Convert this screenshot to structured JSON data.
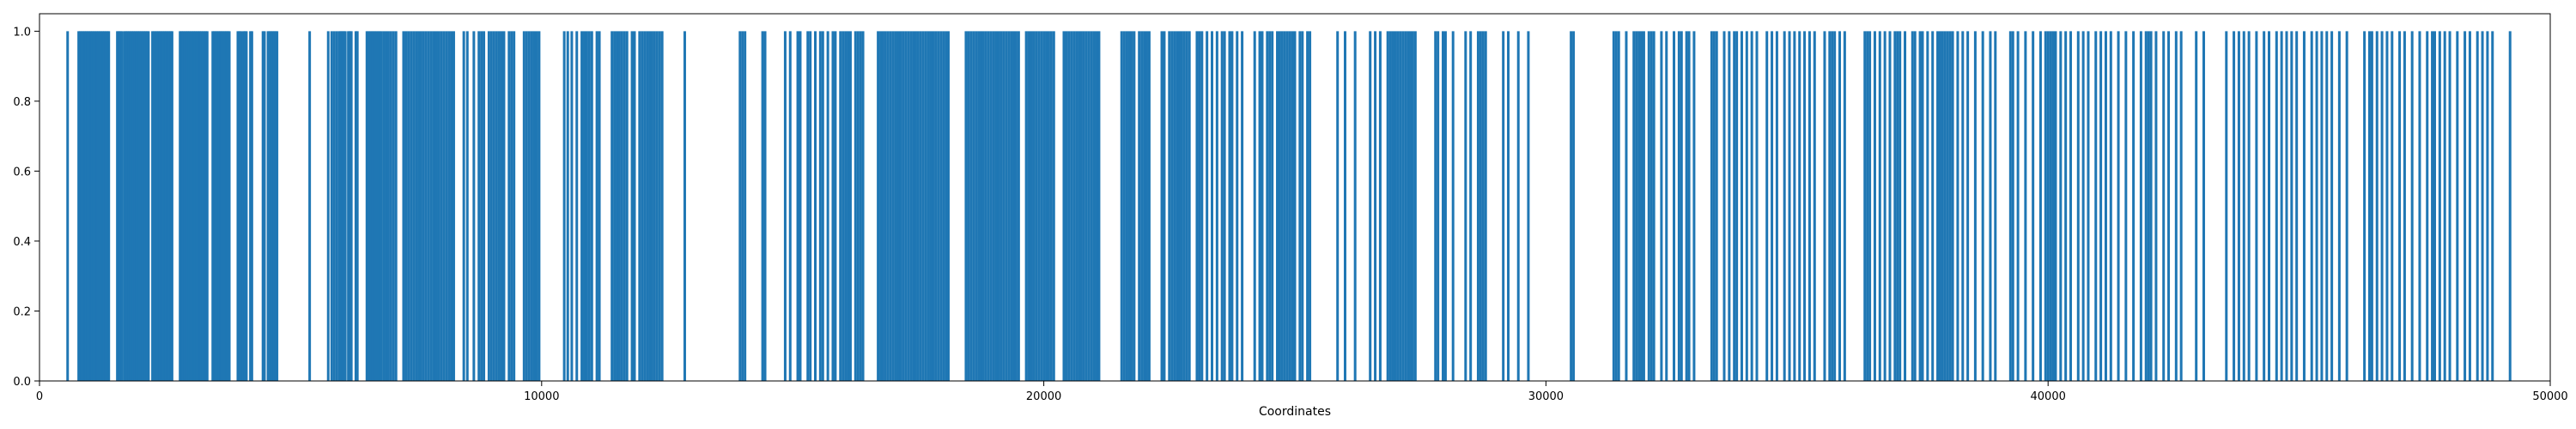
{
  "chart_data": {
    "type": "bar",
    "title": "",
    "xlabel": "Coordinates",
    "ylabel": "",
    "xlim": [
      0,
      50000
    ],
    "ylim": [
      0,
      1.05
    ],
    "x_ticks": [
      0,
      10000,
      20000,
      30000,
      40000,
      50000
    ],
    "y_ticks": [
      0.0,
      0.2,
      0.4,
      0.6,
      0.8,
      1.0
    ],
    "x_tick_labels": [
      "0",
      "10000",
      "20000",
      "30000",
      "40000",
      "50000"
    ],
    "y_tick_labels": [
      "0.0",
      "0.2",
      "0.4",
      "0.6",
      "0.8",
      "1.0"
    ],
    "grid": false,
    "bar_color": "#1f77b4",
    "series": [
      {
        "name": "",
        "value": 1,
        "x": [
          560,
          780,
          810,
          840,
          870,
          900,
          930,
          960,
          990,
          1020,
          1050,
          1080,
          1110,
          1140,
          1170,
          1200,
          1230,
          1260,
          1290,
          1320,
          1350,
          1380,
          1550,
          1580,
          1610,
          1640,
          1690,
          1720,
          1750,
          1780,
          1810,
          1840,
          1870,
          1900,
          1930,
          1960,
          1990,
          2020,
          2050,
          2080,
          2110,
          2140,
          2170,
          2250,
          2280,
          2310,
          2340,
          2370,
          2400,
          2430,
          2460,
          2490,
          2520,
          2550,
          2580,
          2610,
          2640,
          2800,
          2830,
          2860,
          2890,
          2920,
          2950,
          2980,
          3010,
          3040,
          3070,
          3100,
          3130,
          3160,
          3190,
          3220,
          3250,
          3280,
          3310,
          3340,
          3450,
          3480,
          3510,
          3540,
          3570,
          3600,
          3630,
          3660,
          3690,
          3720,
          3750,
          3780,
          3950,
          3980,
          4010,
          4060,
          4090,
          4120,
          4200,
          4230,
          4450,
          4480,
          4550,
          4580,
          4610,
          4640,
          4670,
          4700,
          4730,
          5380,
          5750,
          5820,
          5870,
          5920,
          5970,
          6000,
          6030,
          6060,
          6090,
          6150,
          6180,
          6210,
          6300,
          6330,
          6520,
          6560,
          6600,
          6640,
          6680,
          6720,
          6760,
          6800,
          6850,
          6900,
          6950,
          7000,
          7050,
          7100,
          7250,
          7300,
          7350,
          7400,
          7450,
          7500,
          7550,
          7600,
          7650,
          7700,
          7750,
          7800,
          7850,
          7900,
          7950,
          8000,
          8050,
          8100,
          8150,
          8200,
          8250,
          8450,
          8520,
          8650,
          8750,
          8800,
          8850,
          8950,
          9000,
          9050,
          9100,
          9150,
          9200,
          9250,
          9350,
          9400,
          9450,
          9650,
          9700,
          9750,
          9800,
          9850,
          9900,
          9950,
          10450,
          10520,
          10600,
          10700,
          10800,
          10850,
          10900,
          10950,
          11000,
          11100,
          11150,
          11400,
          11450,
          11500,
          11550,
          11600,
          11650,
          11700,
          11800,
          11850,
          11950,
          12000,
          12050,
          12100,
          12150,
          12200,
          12250,
          12300,
          12350,
          12400,
          12850,
          13950,
          14000,
          14050,
          14400,
          14450,
          14850,
          14950,
          15100,
          15150,
          15300,
          15350,
          15450,
          15550,
          15600,
          15700,
          15800,
          15850,
          15950,
          16000,
          16050,
          16100,
          16150,
          16250,
          16300,
          16350,
          16400,
          16700,
          16750,
          16800,
          16850,
          16900,
          16950,
          17000,
          17050,
          17100,
          17150,
          17200,
          17250,
          17300,
          17350,
          17400,
          17450,
          17500,
          17550,
          17600,
          17650,
          17700,
          17750,
          17800,
          17850,
          17900,
          17950,
          18000,
          18050,
          18100,
          18450,
          18500,
          18550,
          18600,
          18650,
          18700,
          18750,
          18800,
          18850,
          18900,
          18950,
          19000,
          19050,
          19100,
          19150,
          19200,
          19250,
          19300,
          19350,
          19400,
          19450,
          19500,
          19650,
          19700,
          19750,
          19800,
          19850,
          19900,
          19950,
          20000,
          20050,
          20100,
          20150,
          20200,
          20400,
          20450,
          20500,
          20550,
          20600,
          20650,
          20700,
          20750,
          20800,
          20850,
          20900,
          20950,
          21000,
          21050,
          21100,
          21550,
          21600,
          21650,
          21700,
          21750,
          21800,
          21900,
          21950,
          22000,
          22050,
          22100,
          22350,
          22400,
          22500,
          22550,
          22600,
          22650,
          22700,
          22750,
          22800,
          22850,
          22900,
          23050,
          23100,
          23150,
          23250,
          23350,
          23450,
          23550,
          23600,
          23700,
          23750,
          23850,
          23950,
          24200,
          24300,
          24350,
          24450,
          24500,
          24550,
          24650,
          24700,
          24750,
          24800,
          24850,
          24900,
          24950,
          25000,
          25100,
          25150,
          25250,
          25300,
          25850,
          26000,
          26200,
          26500,
          26600,
          26700,
          26850,
          26900,
          26950,
          27000,
          27050,
          27100,
          27150,
          27200,
          27250,
          27300,
          27350,
          27400,
          27800,
          27850,
          27950,
          28000,
          28150,
          28400,
          28500,
          28650,
          28700,
          28750,
          28800,
          29150,
          29250,
          29450,
          29650,
          30500,
          30550,
          31350,
          31400,
          31450,
          31600,
          31750,
          31800,
          31850,
          31900,
          31950,
          32050,
          32100,
          32150,
          32300,
          32400,
          32550,
          32650,
          32700,
          32800,
          32850,
          32950,
          33300,
          33350,
          33400,
          33550,
          33650,
          33750,
          33800,
          33900,
          34000,
          34100,
          34200,
          34400,
          34500,
          34600,
          34750,
          34850,
          34950,
          35050,
          35150,
          35250,
          35350,
          35550,
          35650,
          35700,
          35750,
          35850,
          35950,
          36350,
          36400,
          36450,
          36550,
          36650,
          36750,
          36850,
          36950,
          37000,
          37050,
          37150,
          37300,
          37350,
          37450,
          37500,
          37600,
          37700,
          37800,
          37850,
          37900,
          37950,
          38000,
          38050,
          38100,
          38200,
          38300,
          38400,
          38550,
          38700,
          38850,
          38950,
          39250,
          39300,
          39400,
          39550,
          39700,
          39850,
          39950,
          40000,
          40050,
          40100,
          40150,
          40250,
          40350,
          40450,
          40600,
          40700,
          40800,
          40950,
          41050,
          41150,
          41250,
          41400,
          41550,
          41700,
          41850,
          41950,
          42000,
          42050,
          42150,
          42300,
          42400,
          42550,
          42650,
          42950,
          43100,
          43550,
          43700,
          43800,
          43900,
          44000,
          44150,
          44300,
          44400,
          44550,
          44650,
          44750,
          44850,
          44950,
          45100,
          45250,
          45350,
          45450,
          45550,
          45650,
          45800,
          45950,
          46300,
          46400,
          46450,
          46550,
          46650,
          46750,
          46850,
          47000,
          47100,
          47250,
          47400,
          47550,
          47650,
          47700,
          47800,
          47900,
          48000,
          48150,
          48300,
          48400,
          48550,
          48650,
          48750,
          48850,
          49200
        ]
      }
    ]
  }
}
